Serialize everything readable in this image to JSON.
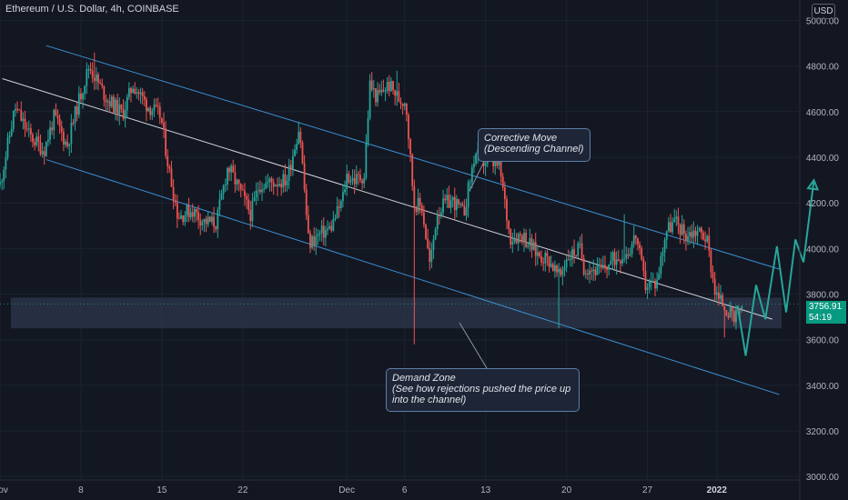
{
  "header": {
    "symbol_title": "Ethereum / U.S. Dollar, 4h, COINBASE",
    "currency": "USD"
  },
  "price_tag": {
    "price": "3756.91",
    "countdown": "54:19"
  },
  "annotations": {
    "corrective_title": "Corrective Move",
    "corrective_sub": "(Descending Channel)",
    "demand_title": "Demand Zone",
    "demand_line1": "(See how rejections pushed the price up",
    "demand_line2": "into the channel)"
  },
  "colors": {
    "background": "#131722",
    "up_candle": "#26a69a",
    "down_candle": "#ef5350",
    "channel_line": "#3d8fd1",
    "midline": "#d1d4dc",
    "projection": "#26a69a",
    "demand_zone": "#2a3446",
    "price_tag": "#089981"
  },
  "chart_data": {
    "type": "candlestick",
    "title": "Ethereum / U.S. Dollar, 4h, COINBASE",
    "y_axis": {
      "ticks": [
        3000,
        3200,
        3400,
        3600,
        3800,
        4000,
        4200,
        4400,
        4600,
        4800,
        5000
      ],
      "tick_labels": [
        "3000.00",
        "3200.00",
        "3400.00",
        "3600.00",
        "3800.00",
        "4000.00",
        "4200.00",
        "4400.00",
        "4600.00",
        "4800.00",
        "5000.00"
      ],
      "range": [
        2985,
        5090
      ]
    },
    "x_axis": {
      "ticks": [
        "Nov",
        "8",
        "15",
        "22",
        "Dec",
        "6",
        "13",
        "20",
        "27",
        "2022"
      ],
      "tick_days": [
        1,
        8,
        15,
        22,
        31,
        36,
        43,
        50,
        57,
        63
      ],
      "range_days": [
        1.0,
        70.1
      ]
    },
    "price_path": [
      [
        1.0,
        4280
      ],
      [
        2.3,
        4620
      ],
      [
        3.5,
        4500
      ],
      [
        4.8,
        4430
      ],
      [
        5.7,
        4580
      ],
      [
        6.8,
        4450
      ],
      [
        7.6,
        4610
      ],
      [
        8.7,
        4800
      ],
      [
        10.2,
        4660
      ],
      [
        11.6,
        4590
      ],
      [
        12.5,
        4720
      ],
      [
        13.7,
        4630
      ],
      [
        14.9,
        4580
      ],
      [
        15.6,
        4350
      ],
      [
        16.4,
        4140
      ],
      [
        17.6,
        4170
      ],
      [
        18.6,
        4120
      ],
      [
        19.7,
        4110
      ],
      [
        20.7,
        4360
      ],
      [
        21.6,
        4270
      ],
      [
        22.7,
        4150
      ],
      [
        23.4,
        4280
      ],
      [
        24.5,
        4290
      ],
      [
        25.8,
        4300
      ],
      [
        26.9,
        4540
      ],
      [
        27.7,
        4020
      ],
      [
        28.6,
        4060
      ],
      [
        29.6,
        4090
      ],
      [
        30.6,
        4210
      ],
      [
        31.0,
        4320
      ],
      [
        31.7,
        4300
      ],
      [
        32.5,
        4320
      ],
      [
        33.0,
        4720
      ],
      [
        33.6,
        4660
      ],
      [
        34.6,
        4720
      ],
      [
        35.6,
        4650
      ],
      [
        36.1,
        4650
      ],
      [
        36.8,
        4200
      ],
      [
        37.5,
        4180
      ],
      [
        38.2,
        3920
      ],
      [
        38.8,
        4160
      ],
      [
        39.6,
        4200
      ],
      [
        40.2,
        4210
      ],
      [
        41.1,
        4150
      ],
      [
        42.1,
        4420
      ],
      [
        42.7,
        4380
      ],
      [
        43.2,
        4380
      ],
      [
        44.2,
        4360
      ],
      [
        45.1,
        4050
      ],
      [
        46.2,
        4060
      ],
      [
        47.4,
        3980
      ],
      [
        48.5,
        3950
      ],
      [
        49.4,
        3870
      ],
      [
        50.0,
        3960
      ],
      [
        51.2,
        4000
      ],
      [
        51.5,
        3920
      ],
      [
        53.0,
        3900
      ],
      [
        54.0,
        3950
      ],
      [
        55.4,
        3990
      ],
      [
        56.0,
        4060
      ],
      [
        56.8,
        3840
      ],
      [
        57.8,
        3850
      ],
      [
        58.6,
        4080
      ],
      [
        59.4,
        4120
      ],
      [
        60.3,
        4060
      ],
      [
        61.3,
        4080
      ],
      [
        62.1,
        4050
      ],
      [
        62.9,
        3800
      ],
      [
        63.8,
        3740
      ],
      [
        64.5,
        3680
      ],
      [
        65.2,
        3757
      ]
    ],
    "wick_extremes": [
      {
        "day": 9.2,
        "high": 4860
      },
      {
        "day": 35.3,
        "high": 4780
      },
      {
        "day": 36.9,
        "low": 3580
      },
      {
        "day": 43.9,
        "high": 4460
      },
      {
        "day": 49.3,
        "low": 3650
      },
      {
        "day": 55.0,
        "high": 4150
      },
      {
        "day": 63.7,
        "low": 3610
      }
    ],
    "channel": {
      "upper": [
        [
          5.0,
          4890
        ],
        [
          68.4,
          3910
        ]
      ],
      "middle": [
        [
          1.2,
          4745
        ],
        [
          67.8,
          3690
        ]
      ],
      "lower": [
        [
          5.0,
          4390
        ],
        [
          68.4,
          3360
        ]
      ]
    },
    "demand_zone": {
      "low": 3650,
      "high": 3785
    },
    "projection_path": [
      [
        64.8,
        3750
      ],
      [
        65.5,
        3530
      ],
      [
        66.4,
        3840
      ],
      [
        67.2,
        3690
      ],
      [
        68.2,
        4010
      ],
      [
        69.0,
        3720
      ],
      [
        69.8,
        4040
      ],
      [
        70.5,
        3940
      ],
      [
        71.4,
        4300
      ]
    ]
  }
}
